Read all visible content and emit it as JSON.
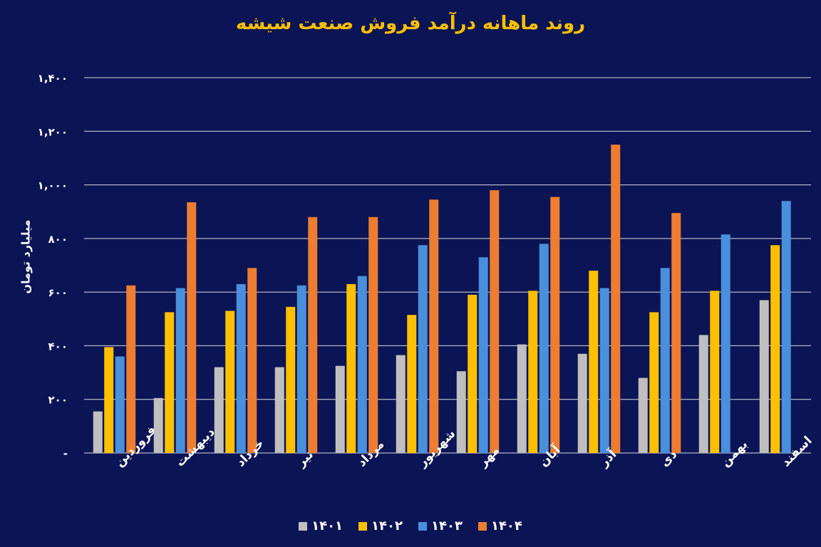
{
  "chart_data": {
    "type": "bar",
    "title": "روند ماهانه درآمد فروش صنعت شیشه",
    "ylabel": "میلیارد تومان",
    "xlabel": "",
    "ylim": [
      0,
      1400
    ],
    "yticks": [
      0,
      200,
      400,
      600,
      800,
      1000,
      1200,
      1400
    ],
    "ytick_labels": [
      "-",
      "۲۰۰",
      "۴۰۰",
      "۶۰۰",
      "۸۰۰",
      "۱,۰۰۰",
      "۱,۲۰۰",
      "۱,۴۰۰"
    ],
    "grid": true,
    "legend_position": "bottom",
    "categories": [
      "فروردین",
      "اردیبهشت",
      "خرداد",
      "تیر",
      "مرداد",
      "شهریور",
      "مهر",
      "آبان",
      "آذر",
      "دی",
      "بهمن",
      "اسفند"
    ],
    "series": [
      {
        "name": "۱۴۰۱",
        "color": "#bfbfbf",
        "values": [
          155,
          205,
          320,
          320,
          325,
          365,
          305,
          405,
          370,
          280,
          440,
          570
        ]
      },
      {
        "name": "۱۴۰۲",
        "color": "#ffc000",
        "values": [
          395,
          525,
          530,
          545,
          630,
          515,
          590,
          605,
          680,
          525,
          605,
          775
        ]
      },
      {
        "name": "۱۴۰۳",
        "color": "#4a8fdc",
        "values": [
          360,
          615,
          630,
          625,
          660,
          775,
          730,
          780,
          615,
          690,
          815,
          940
        ]
      },
      {
        "name": "۱۴۰۴",
        "color": "#ed7d31",
        "values": [
          625,
          935,
          690,
          880,
          880,
          945,
          980,
          955,
          1150,
          895,
          null,
          null
        ]
      }
    ]
  }
}
